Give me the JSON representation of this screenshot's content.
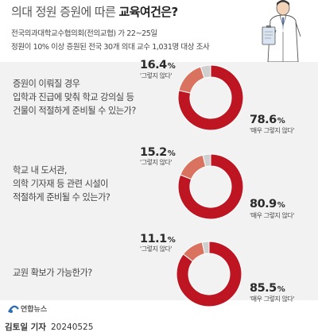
{
  "header": {
    "title_prefix": "의대 정원 증원에 따른 ",
    "title_emphasis": "교육여건은?",
    "subtitle_1": "전국의과대학교수협의회(전의교협) 가 22~25일",
    "subtitle_2": "정원이 10% 이상 증원된 전국 30개 의대 교수 1,031명 대상 조사"
  },
  "colors": {
    "no": "#bd1521",
    "so_so": "#d9735f",
    "other": "#cfcfcf",
    "panel": "#f2f2f2"
  },
  "icons": {
    "illustration": "doctor-holding-clipboard-icon",
    "logo": "yonhap-news-logo-icon"
  },
  "chart_data": [
    {
      "type": "pie",
      "question_lines": [
        "증원이 이뤄질 경우",
        "입학과 진급에 맞춰 학교 강의실 등",
        "건물이 적절하게 준비될 수 있는가?"
      ],
      "slices": [
        {
          "label": "'매우 그렇지 않다'",
          "value": 78.6,
          "value_text": "78.6",
          "unit": "%"
        },
        {
          "label": "'그렇지 않다'",
          "value": 16.4,
          "value_text": "16.4",
          "unit": "%"
        }
      ],
      "remainder": 5.0
    },
    {
      "type": "pie",
      "question_lines": [
        "학교 내 도서관,",
        "의학 기자재 등 관련 시설이",
        "적절하게 준비될 수 있는가?"
      ],
      "slices": [
        {
          "label": "'매우 그렇지 않다'",
          "value": 80.9,
          "value_text": "80.9",
          "unit": "%"
        },
        {
          "label": "'그렇지 않다'",
          "value": 15.2,
          "value_text": "15.2",
          "unit": "%"
        }
      ],
      "remainder": 3.9
    },
    {
      "type": "pie",
      "question_lines": [
        "교원 확보가 가능한가?"
      ],
      "slices": [
        {
          "label": "'매우 그렇지 않다'",
          "value": 85.5,
          "value_text": "85.5",
          "unit": "%"
        },
        {
          "label": "'그렇지 않다'",
          "value": 11.1,
          "value_text": "11.1",
          "unit": "%"
        }
      ],
      "remainder": 3.4
    }
  ],
  "footer": {
    "logo_text": "연합뉴스",
    "author": "김토일 기자",
    "date": "20240525"
  }
}
